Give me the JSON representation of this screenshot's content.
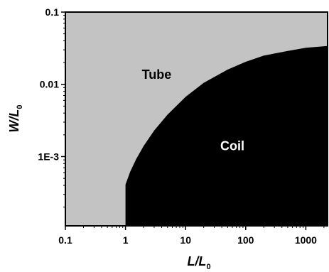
{
  "chart_data": {
    "type": "area",
    "title": "",
    "xlabel": {
      "main": "L/L",
      "sub": "0"
    },
    "ylabel": {
      "main": "W/L",
      "sub": "0"
    },
    "x_scale": "log",
    "y_scale": "log",
    "xlim": [
      0.1,
      2300
    ],
    "ylim": [
      0.00011,
      0.1
    ],
    "x_ticks": [
      {
        "value": 0.1,
        "label": "0.1"
      },
      {
        "value": 1,
        "label": "1"
      },
      {
        "value": 10,
        "label": "10"
      },
      {
        "value": 100,
        "label": "100"
      },
      {
        "value": 1000,
        "label": "1000"
      }
    ],
    "y_ticks": [
      {
        "value": 0.1,
        "label": "0.1"
      },
      {
        "value": 0.01,
        "label": "0.01"
      },
      {
        "value": 0.001,
        "label": "1E-3"
      }
    ],
    "regions": [
      {
        "name": "Tube",
        "color": "#c3c3c3",
        "label_x": 3.3,
        "label_y": 0.0137,
        "text_color": "#000000"
      },
      {
        "name": "Coil",
        "color": "#000000",
        "label_x": 60,
        "label_y": 0.0014,
        "text_color": "#ffffff"
      }
    ],
    "boundary": {
      "x": [
        1,
        1,
        1.2,
        1.5,
        2,
        3,
        5,
        10,
        20,
        50,
        100,
        200,
        500,
        1000,
        2300
      ],
      "y": [
        0.00011,
        0.00041,
        0.00062,
        0.00092,
        0.0014,
        0.0023,
        0.0038,
        0.0067,
        0.0105,
        0.016,
        0.0205,
        0.025,
        0.029,
        0.032,
        0.034
      ]
    },
    "grid": false,
    "legend": "none"
  }
}
